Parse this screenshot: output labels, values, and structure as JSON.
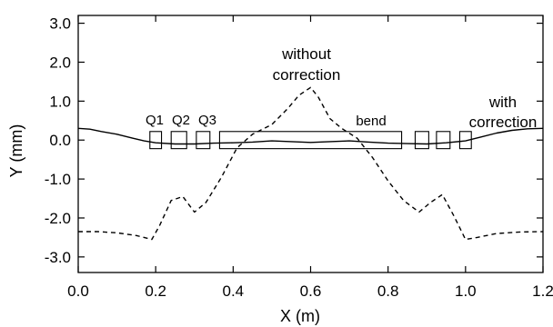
{
  "chart_data": {
    "type": "line",
    "xlabel": "X (m)",
    "ylabel": "Y (mm)",
    "xlim": [
      0.0,
      1.2
    ],
    "ylim": [
      -3.4,
      3.2
    ],
    "x_ticks": [
      0.0,
      0.2,
      0.4,
      0.6,
      0.8,
      1.0,
      1.2
    ],
    "x_tick_labels": [
      "0.0",
      "0.2",
      "0.4",
      "0.6",
      "0.8",
      "1.0",
      "1.2"
    ],
    "y_ticks": [
      3.0,
      2.0,
      1.0,
      0.0,
      -1.0,
      -2.0,
      -3.0
    ],
    "y_tick_labels": [
      "3.0",
      "2.0",
      "1.0",
      "0.0",
      "-1.0",
      "-2.0",
      "-3.0"
    ],
    "grid": false,
    "series": [
      {
        "name": "with correction",
        "style": "solid",
        "color": "#000000",
        "x": [
          0.0,
          0.03,
          0.06,
          0.1,
          0.14,
          0.17,
          0.2,
          0.25,
          0.3,
          0.35,
          0.4,
          0.45,
          0.5,
          0.55,
          0.6,
          0.65,
          0.7,
          0.75,
          0.8,
          0.85,
          0.9,
          0.95,
          1.0,
          1.04,
          1.08,
          1.12,
          1.16,
          1.2
        ],
        "y": [
          0.3,
          0.28,
          0.22,
          0.15,
          0.05,
          -0.02,
          -0.07,
          -0.1,
          -0.1,
          -0.08,
          -0.07,
          -0.05,
          -0.02,
          -0.04,
          -0.06,
          -0.04,
          -0.02,
          -0.05,
          -0.08,
          -0.09,
          -0.1,
          -0.07,
          -0.02,
          0.08,
          0.18,
          0.25,
          0.29,
          0.3
        ]
      },
      {
        "name": "without correction",
        "style": "dashed",
        "color": "#000000",
        "x": [
          0.0,
          0.05,
          0.1,
          0.15,
          0.19,
          0.21,
          0.24,
          0.27,
          0.3,
          0.33,
          0.37,
          0.41,
          0.45,
          0.5,
          0.54,
          0.57,
          0.6,
          0.62,
          0.65,
          0.68,
          0.72,
          0.76,
          0.8,
          0.84,
          0.88,
          0.91,
          0.94,
          0.97,
          1.0,
          1.03,
          1.08,
          1.14,
          1.2
        ],
        "y": [
          -2.35,
          -2.35,
          -2.38,
          -2.45,
          -2.55,
          -2.2,
          -1.55,
          -1.45,
          -1.85,
          -1.6,
          -0.95,
          -0.2,
          0.15,
          0.4,
          0.8,
          1.15,
          1.35,
          1.1,
          0.55,
          0.3,
          0.05,
          -0.45,
          -1.05,
          -1.55,
          -1.85,
          -1.6,
          -1.4,
          -1.95,
          -2.55,
          -2.5,
          -2.4,
          -2.36,
          -2.35
        ]
      }
    ],
    "annotations": {
      "without_line1": "without",
      "without_line2": "correction",
      "with_line1": "with",
      "with_line2": "correction",
      "bend": "bend",
      "q1": "Q1",
      "q2": "Q2",
      "q3": "Q3"
    },
    "elements": {
      "bend_magnet": {
        "x_range": [
          0.365,
          0.835
        ],
        "y_range": [
          -0.22,
          0.22
        ]
      },
      "quadrupoles": [
        {
          "x_range": [
            0.185,
            0.215
          ],
          "y_range": [
            -0.22,
            0.22
          ]
        },
        {
          "x_range": [
            0.24,
            0.28
          ],
          "y_range": [
            -0.22,
            0.22
          ]
        },
        {
          "x_range": [
            0.305,
            0.34
          ],
          "y_range": [
            -0.22,
            0.22
          ]
        },
        {
          "x_range": [
            0.87,
            0.905
          ],
          "y_range": [
            -0.22,
            0.22
          ]
        },
        {
          "x_range": [
            0.925,
            0.96
          ],
          "y_range": [
            -0.22,
            0.22
          ]
        },
        {
          "x_range": [
            0.985,
            1.015
          ],
          "y_range": [
            -0.22,
            0.22
          ]
        }
      ]
    }
  }
}
